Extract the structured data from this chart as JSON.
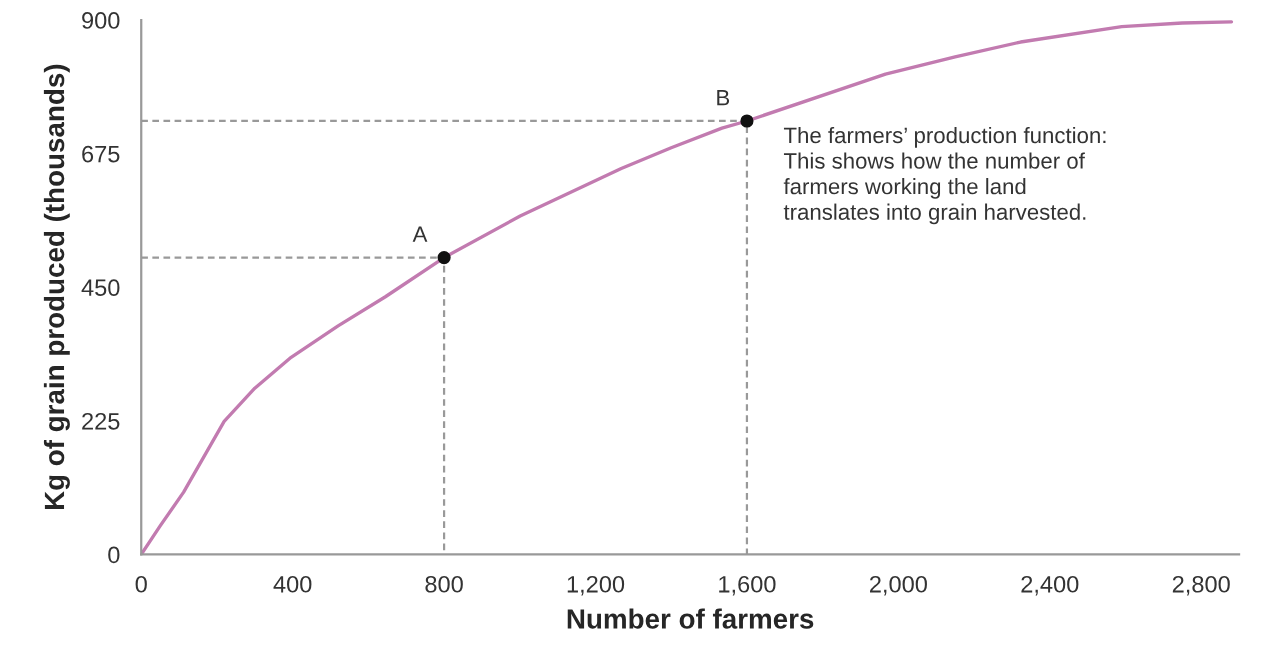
{
  "chart_data": {
    "type": "line",
    "xlabel": "Number of farmers",
    "ylabel": "Kg of grain produced (thousands)",
    "xlim": [
      0,
      2900
    ],
    "ylim": [
      0,
      900
    ],
    "xticks": [
      0,
      {
        "value": 400,
        "label": "400"
      },
      {
        "value": 800,
        "label": "800"
      },
      {
        "value": 1200,
        "label": "1,200"
      },
      {
        "value": 1600,
        "label": "1,600"
      },
      {
        "value": 2000,
        "label": "2,000"
      },
      {
        "value": 2400,
        "label": "2,400"
      },
      {
        "value": 2800,
        "label": "2,800"
      }
    ],
    "yticks": [
      0,
      225,
      450,
      675,
      900
    ],
    "grid": false,
    "legend": false,
    "series": [
      {
        "color": "#c27bb0",
        "line_style": "solid",
        "x": [
          0,
          50,
          112,
          219,
          300,
          396,
          520,
          645,
          800,
          1001,
          1268,
          1400,
          1534,
          1600,
          1966,
          2150,
          2323,
          2590,
          2750,
          2880
        ],
        "values": [
          0,
          48,
          105,
          224,
          280,
          332,
          385,
          434,
          500,
          570,
          650,
          685,
          718,
          730,
          809,
          838,
          863,
          889,
          895,
          897
        ]
      },
      {
        "color": "#999999",
        "line_style": "dashed",
        "x": [
          0,
          800,
          800
        ],
        "values": [
          500,
          500,
          0
        ]
      },
      {
        "color": "#999999",
        "line_style": "dashed",
        "x": [
          0,
          1600,
          1600
        ],
        "values": [
          730,
          730,
          0
        ]
      },
      {
        "type": "scatter",
        "color": "#111111",
        "marker": "circle",
        "x": [
          800,
          1600
        ],
        "values": [
          500,
          730
        ]
      }
    ],
    "annotations": [
      {
        "text": "A",
        "x": 800,
        "y": 500
      },
      {
        "text": "B",
        "x": 1600,
        "y": 730
      },
      "The farmers’ production function:\nThis shows how the number of\nfarmers working the land\ntranslates into grain harvested."
    ]
  }
}
